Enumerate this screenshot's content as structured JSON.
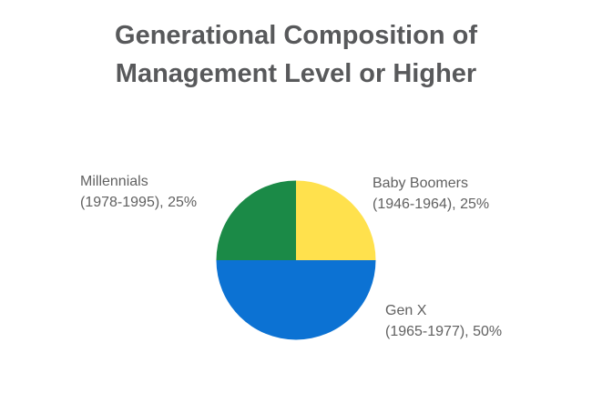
{
  "header": {
    "title_line1": "Generational Composition of",
    "title_line2": "Management Level or Higher"
  },
  "labels": {
    "millennials": {
      "line1": "Millennials",
      "line2": "(1978-1995), 25%"
    },
    "baby_boomers": {
      "line1": "Baby Boomers",
      "line2": "(1946-1964), 25%"
    },
    "gen_x": {
      "line1": "Gen X",
      "line2": "(1965-1977), 50%"
    }
  },
  "colors": {
    "background": "#FFFFFF",
    "title_text": "#58595B",
    "label_text": "#616161",
    "slice_baby_boomers": "#FFE14D",
    "slice_gen_x": "#0C72D3",
    "slice_millennials": "#1B8A47"
  },
  "chart_data": {
    "type": "pie",
    "title": "Generational Composition of Management Level or Higher",
    "slices": [
      {
        "label": "Baby Boomers",
        "years": "1946-1964",
        "value": 25,
        "percent": "25%",
        "color": "#FFE14D"
      },
      {
        "label": "Gen X",
        "years": "1965-1977",
        "value": 50,
        "percent": "50%",
        "color": "#0C72D3"
      },
      {
        "label": "Millennials",
        "years": "1978-1995",
        "value": 25,
        "percent": "25%",
        "color": "#1B8A47"
      }
    ],
    "start_angle_deg": 0,
    "direction": "clockwise",
    "labels_position": "outside",
    "legend_position": "none"
  }
}
